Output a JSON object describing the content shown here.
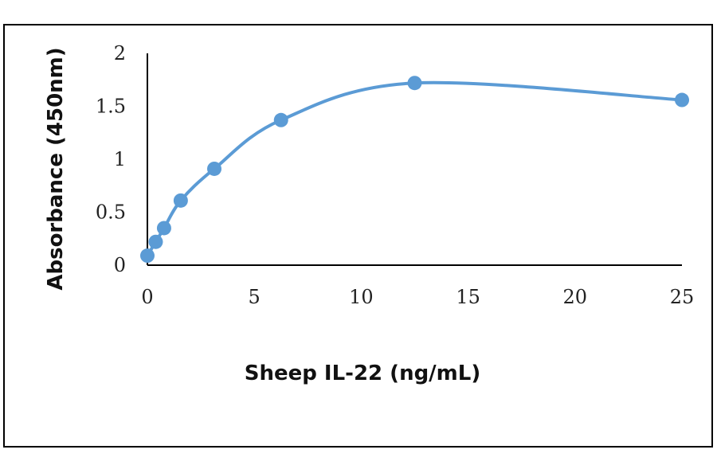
{
  "chart_data": {
    "type": "line",
    "title": "",
    "xlabel": "Sheep IL-22 (ng/mL)",
    "ylabel": "Absorbance (450nm)",
    "xlim": [
      0,
      25
    ],
    "ylim": [
      0,
      2
    ],
    "xticks": [
      "0",
      "5",
      "10",
      "15",
      "20",
      "25"
    ],
    "yticks": [
      "0",
      "0.5",
      "1",
      "1.5",
      "2"
    ],
    "grid": false,
    "legend": "none",
    "series": [
      {
        "color": "#5b9bd5",
        "smooth": true,
        "x": [
          0,
          0.39,
          0.78,
          1.56,
          3.13,
          6.25,
          12.5,
          25
        ],
        "y": [
          0.09,
          0.22,
          0.35,
          0.61,
          0.91,
          1.37,
          1.72,
          1.56
        ]
      }
    ]
  }
}
